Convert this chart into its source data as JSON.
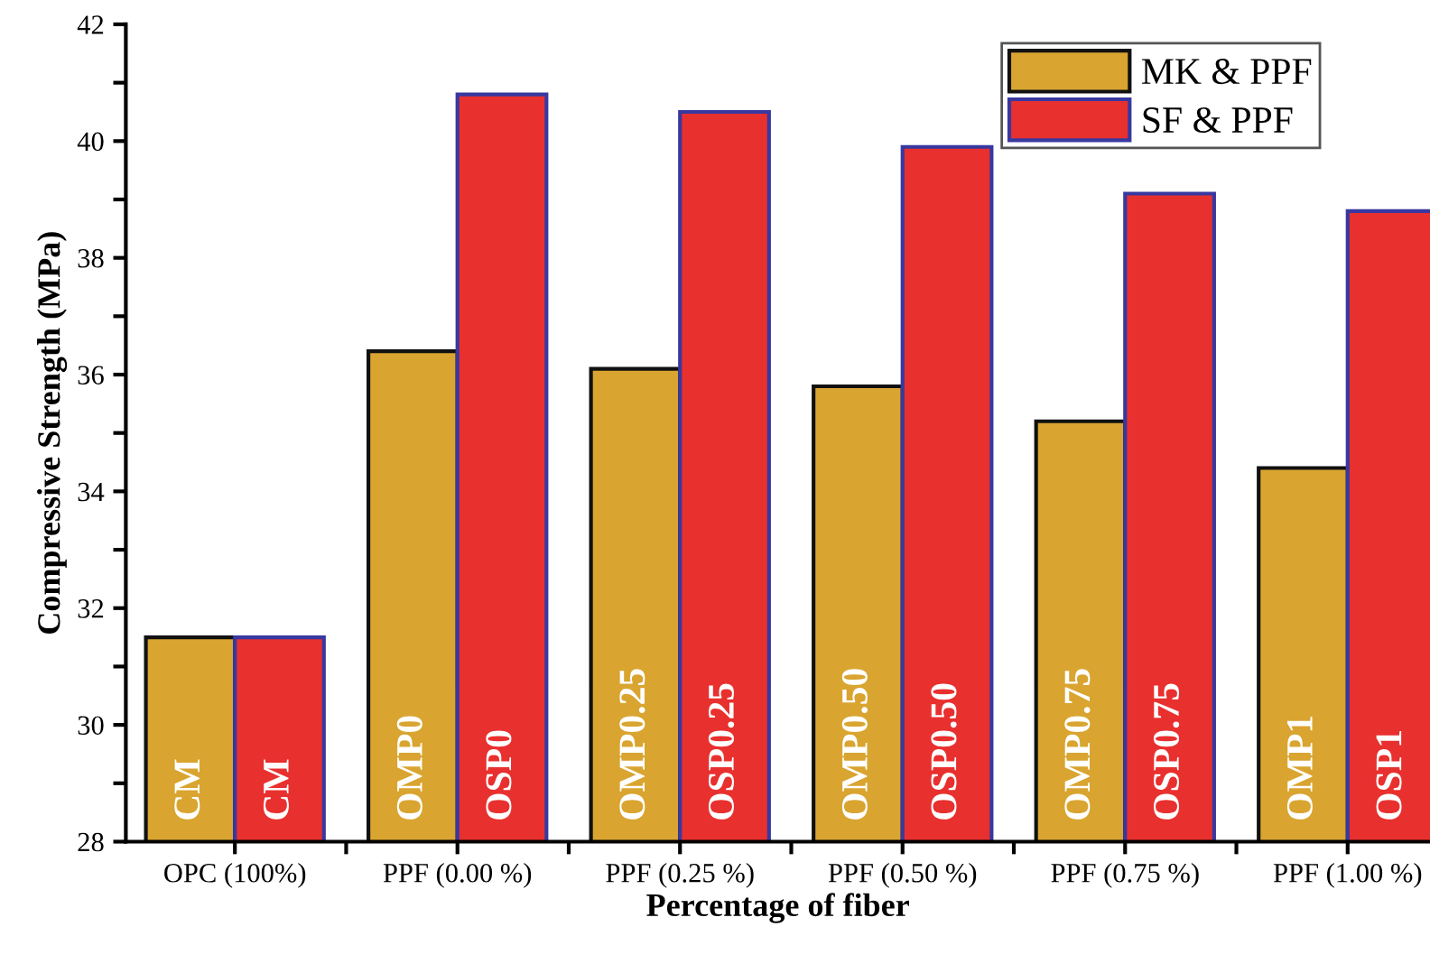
{
  "chart_data": {
    "type": "bar",
    "xlabel": "Percentage of fiber",
    "ylabel": "Compressive Strength (MPa)",
    "categories": [
      "OPC (100%)",
      "PPF (0.00 %)",
      "PPF (0.25 %)",
      "PPF (0.50 %)",
      "PPF (0.75 %)",
      "PPF (1.00 %)"
    ],
    "series": [
      {
        "name": "MK & PPF",
        "color": "#d9a530",
        "values": [
          31.5,
          36.4,
          36.1,
          35.8,
          35.2,
          34.4
        ],
        "value_labels": [
          "CM",
          "OMP0",
          "OMP0.25",
          "OMP0.50",
          "OMP0.75",
          "OMP1"
        ]
      },
      {
        "name": "SF & PPF",
        "color": "#e8302e",
        "values": [
          31.5,
          40.8,
          40.5,
          39.9,
          39.1,
          38.8
        ],
        "value_labels": [
          "CM",
          "OSP0",
          "OSP0.25",
          "OSP0.50",
          "OSP0.75",
          "OSP1"
        ]
      }
    ],
    "ylim": [
      28,
      42
    ],
    "yticks": [
      28,
      {
        "value": 29,
        "label": null
      },
      30,
      {
        "value": 31,
        "label": null
      },
      32,
      {
        "value": 33,
        "label": null
      },
      34,
      {
        "value": 35,
        "label": null
      },
      36,
      {
        "value": 37,
        "label": null
      },
      38,
      {
        "value": 39,
        "label": null
      },
      40,
      {
        "value": 41,
        "label": null
      },
      42
    ],
    "grid": false,
    "legend": "top right"
  }
}
